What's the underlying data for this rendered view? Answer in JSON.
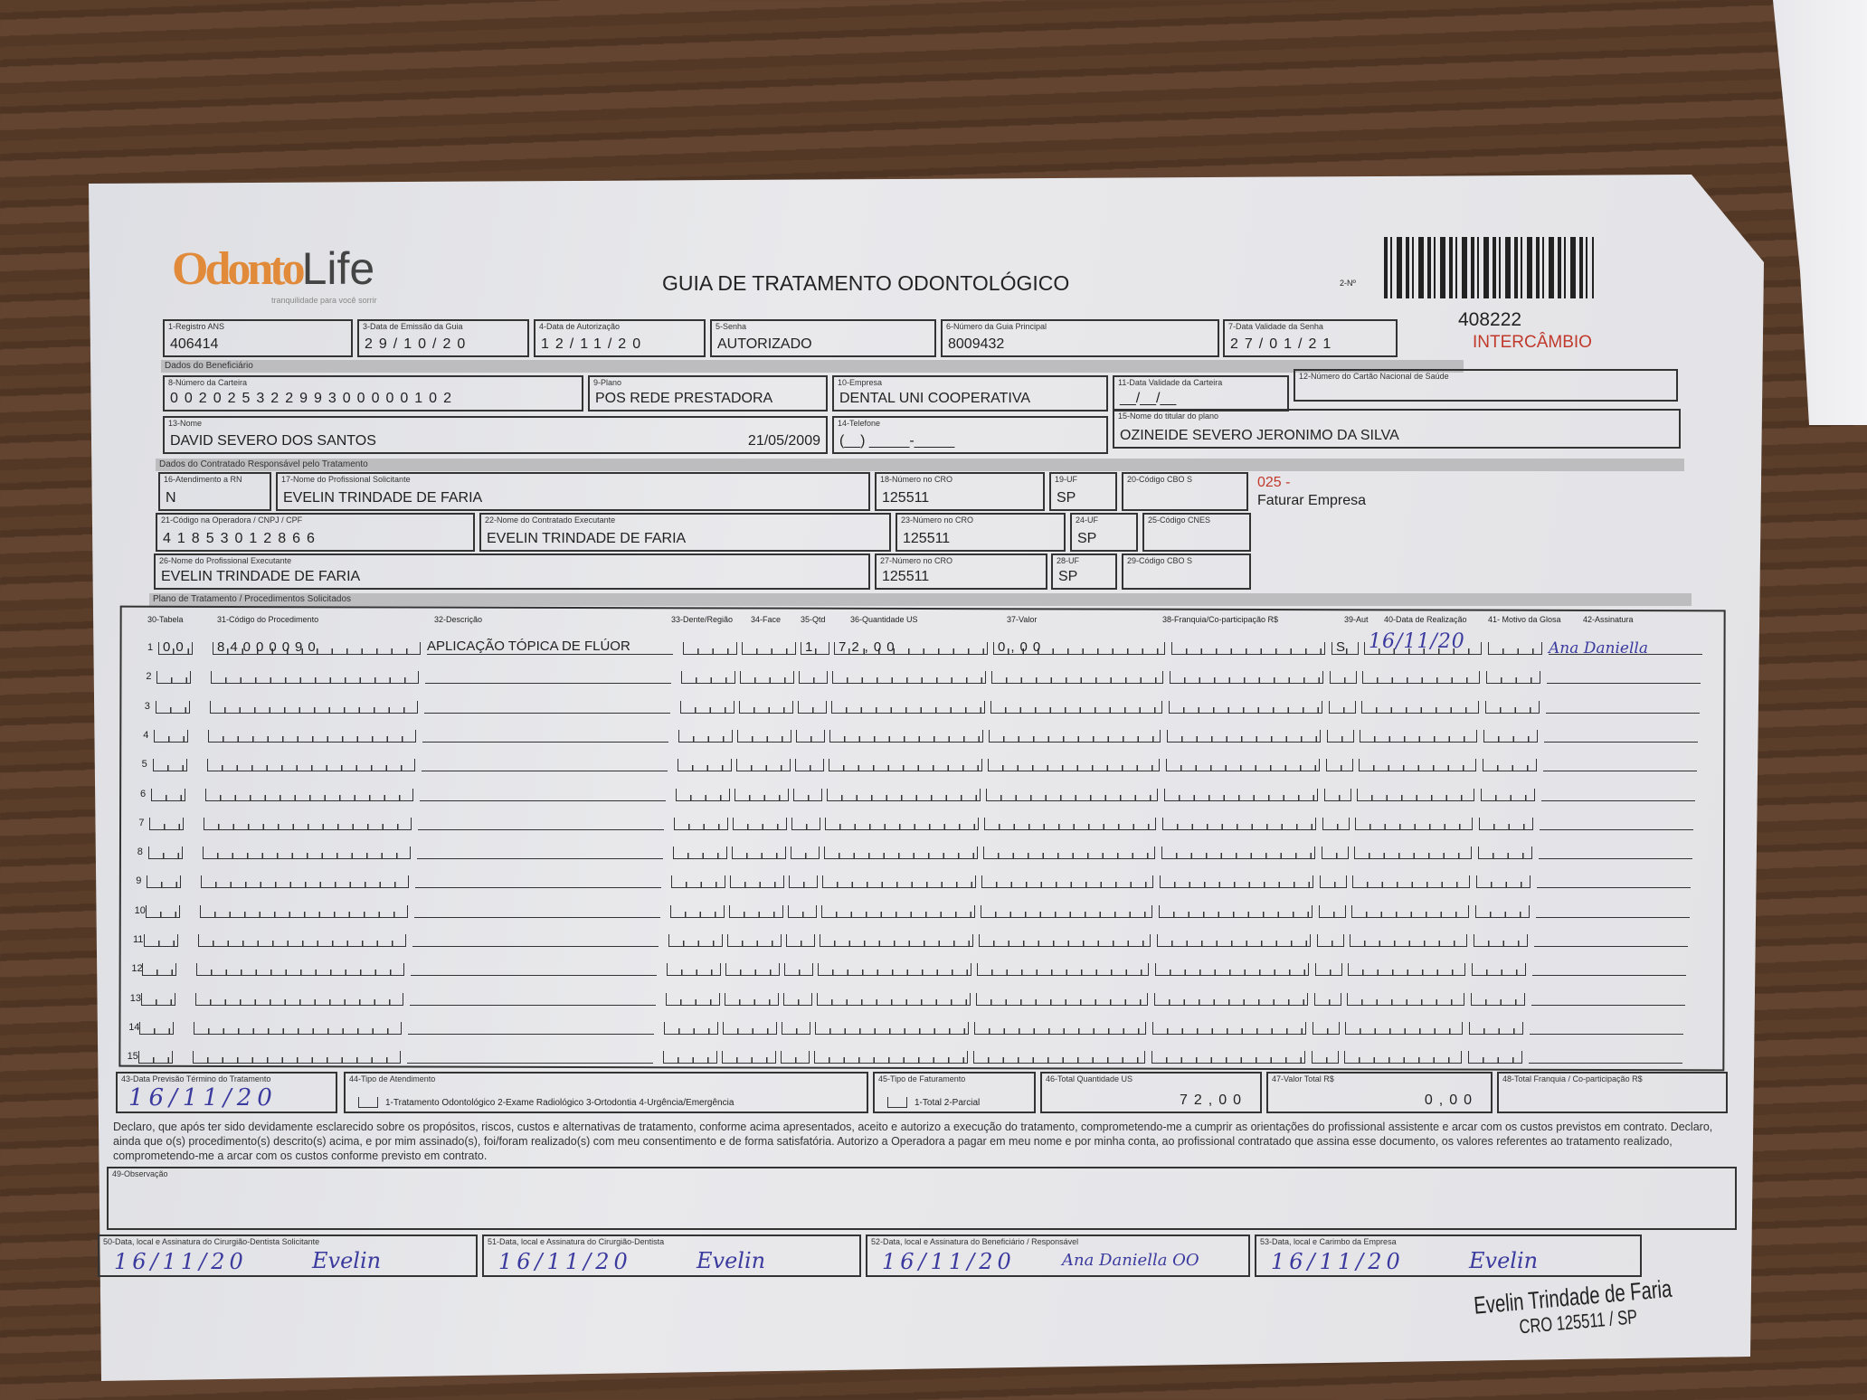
{
  "logo": {
    "text_main": "Odonto",
    "text_life": "Life",
    "tagline": "tranquilidade para você sorrir",
    "color": "#e08a3a"
  },
  "title": "GUIA DE TRATAMENTO ODONTOLÓGICO",
  "guide_number_label": "2-Nº",
  "guide_number": "408222",
  "intercambio": "INTERCÂMBIO",
  "header_fields": [
    {
      "label": "1-Registro ANS",
      "value": "406414"
    },
    {
      "label": "3-Data de Emissão da Guia",
      "value": "29/10/20"
    },
    {
      "label": "4-Data de Autorização",
      "value": "12/11/20"
    },
    {
      "label": "5-Senha",
      "value": "AUTORIZADO"
    },
    {
      "label": "6-Número da Guia Principal",
      "value": "8009432"
    },
    {
      "label": "7-Data Validade da Senha",
      "value": "27/01/21"
    }
  ],
  "section_beneficiario": "Dados do Beneficiário",
  "beneficiario": {
    "carteira": {
      "label": "8-Número da Carteira",
      "value": "00202532299300000102"
    },
    "plano": {
      "label": "9-Plano",
      "value": "POS REDE PRESTADORA"
    },
    "empresa": {
      "label": "10-Empresa",
      "value": "DENTAL UNI  COOPERATIVA"
    },
    "validade": {
      "label": "11-Data Validade da Carteira",
      "value": "__/__/__"
    },
    "cns": {
      "label": "12-Número do Cartão Nacional de Saúde",
      "value": ""
    },
    "nome": {
      "label": "13-Nome",
      "value": "DAVID SEVERO DOS SANTOS",
      "date": "21/05/2009"
    },
    "telefone": {
      "label": "14-Telefone",
      "value": "(__) _____-_____"
    },
    "titular": {
      "label": "15-Nome do titular do plano",
      "value": "OZINEIDE SEVERO JERONIMO DA SILVA"
    }
  },
  "section_contratado": "Dados do Contratado Responsável pelo Tratamento",
  "contratado": {
    "rn": {
      "label": "16-Atendimento a RN",
      "value": "N"
    },
    "solicitante": {
      "label": "17-Nome do Profissional Solicitante",
      "value": "EVELIN TRINDADE DE FARIA"
    },
    "cro18": {
      "label": "18-Número no CRO",
      "value": "125511"
    },
    "uf19": {
      "label": "19-UF",
      "value": "SP"
    },
    "cbo20": {
      "label": "20-Código CBO S",
      "value": ""
    },
    "codigo": {
      "label": "21-Código na Operadora / CNPJ / CPF",
      "value": "41853012866"
    },
    "executante": {
      "label": "22-Nome do Contratado Executante",
      "value": "EVELIN TRINDADE DE FARIA"
    },
    "cro23": {
      "label": "23-Número no CRO",
      "value": "125511"
    },
    "uf24": {
      "label": "24-UF",
      "value": "SP"
    },
    "cnes": {
      "label": "25-Código CNES",
      "value": ""
    },
    "prof_exec": {
      "label": "26-Nome do Profissional Executante",
      "value": "EVELIN TRINDADE DE FARIA"
    },
    "cro27": {
      "label": "27-Número no CRO",
      "value": "125511"
    },
    "uf28": {
      "label": "28-UF",
      "value": "SP"
    },
    "cbo29": {
      "label": "29-Código CBO S",
      "value": ""
    },
    "note_code": "025 -",
    "note_text": "Faturar Empresa",
    "note_color": "#c0392b"
  },
  "section_plano": "Plano de Tratamento / Procedimentos Solicitados",
  "table": {
    "headers": [
      "30-Tabela",
      "31-Código do Procedimento",
      "32-Descrição",
      "33-Dente/Região",
      "34-Face",
      "35-Qtd",
      "36-Quantidade US",
      "37-Valor",
      "38-Franquia/Co-participação R$",
      "39-Aut",
      "40-Data de Realização",
      "41- Motivo da Glosa",
      "42-Assinatura"
    ],
    "rows": [
      {
        "n": "1",
        "tabela": "00",
        "codigo": "84000090",
        "descricao": "APLICAÇÃO TÓPICA DE FLÚOR",
        "dente": "",
        "face": "",
        "qtd": "1",
        "qtd_us": "72,00",
        "valor": "0,00",
        "franquia": "",
        "aut": "S",
        "data": "16/11/20",
        "glosa": "",
        "assinatura": "Ana Daniella"
      },
      {
        "n": "2"
      },
      {
        "n": "3"
      },
      {
        "n": "4"
      },
      {
        "n": "5"
      },
      {
        "n": "6"
      },
      {
        "n": "7"
      },
      {
        "n": "8"
      },
      {
        "n": "9"
      },
      {
        "n": "10"
      },
      {
        "n": "11"
      },
      {
        "n": "12"
      },
      {
        "n": "13"
      },
      {
        "n": "14"
      },
      {
        "n": "15"
      }
    ]
  },
  "totals": {
    "previsao": {
      "label": "43-Data Previsão Término do Tratamento",
      "value": "16/11/20"
    },
    "tipo_atendimento": {
      "label": "44-Tipo de Atendimento",
      "options": "1-Tratamento Odontológico  2-Exame Radiológico  3-Ortodontia  4-Urgência/Emergência"
    },
    "tipo_faturamento": {
      "label": "45-Tipo de Faturamento",
      "options": "1-Total  2-Parcial"
    },
    "total_us": {
      "label": "46-Total Quantidade US",
      "value": "72,00"
    },
    "valor_total": {
      "label": "47-Valor Total R$",
      "value": "0,00"
    },
    "total_franquia": {
      "label": "48-Total Franquia / Co-participação R$",
      "value": ""
    }
  },
  "declaration": "Declaro, que após ter sido devidamente esclarecido sobre os propósitos, riscos, custos e alternativas de tratamento, conforme acima apresentados, aceito e autorizo a execução do tratamento, comprometendo-me a cumprir as orientações do profissional assistente e arcar com os custos previstos em contrato. Declaro, ainda que o(s) procedimento(s) descrito(s) acima, e por mim assinado(s), foi/foram realizado(s) com meu consentimento e de forma satisfatória. Autorizo a Operadora a pagar em meu nome e por minha conta, ao profissional contratado que assina esse documento, os valores referentes ao tratamento realizado, comprometendo-me a arcar com os custos conforme previsto em contrato.",
  "observacao": {
    "label": "49-Observação",
    "value": ""
  },
  "signatures": [
    {
      "label": "50-Data, local e Assinatura do Cirurgião-Dentista Solicitante",
      "date": "16/11/20",
      "sign": "Evelin"
    },
    {
      "label": "51-Data, local e Assinatura do Cirurgião-Dentista",
      "date": "16/11/20",
      "sign": "Evelin"
    },
    {
      "label": "52-Data, local e Assinatura do Beneficiário / Responsável",
      "date": "16/11/20",
      "sign": "Ana Daniella OO"
    },
    {
      "label": "53-Data, local e Carimbo da Empresa",
      "date": "16/11/20",
      "sign": "Evelin"
    }
  ],
  "stamp": {
    "name": "Evelin Trindade de Faria",
    "cro": "CRO 125511 / SP"
  }
}
